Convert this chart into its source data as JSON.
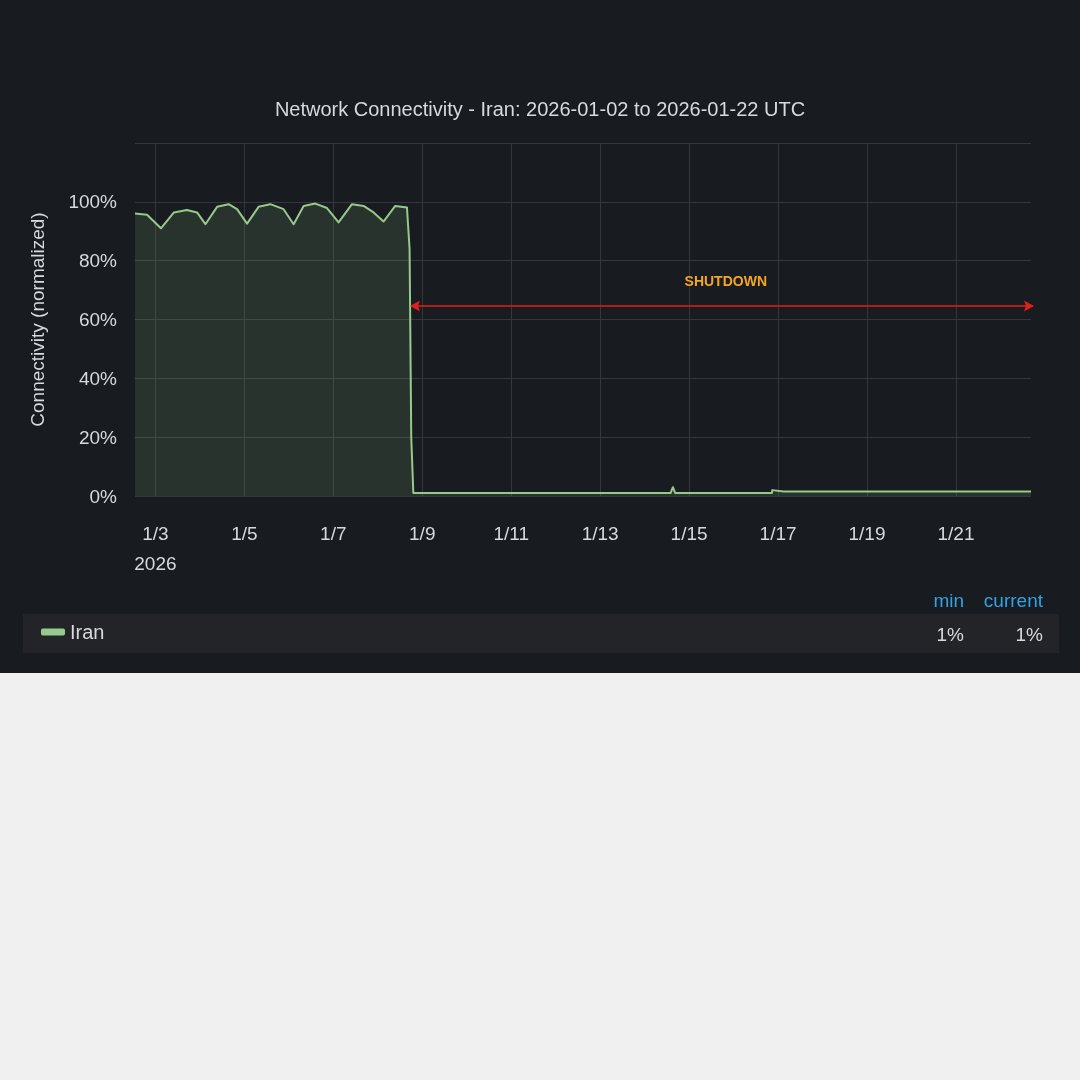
{
  "chart_data": {
    "type": "area",
    "title": "Network Connectivity - Iran: 2026-01-02 to 2026-01-22 UTC",
    "ylabel": "Connectivity (normalized)",
    "series": [
      {
        "name": "Iran",
        "color": "#96c98a",
        "x": [
          "2026-01-02T13:00",
          "2026-01-02T19:30",
          "2026-01-03T03:00",
          "2026-01-03T10:00",
          "2026-01-03T17:00",
          "2026-01-03T22:30",
          "2026-01-04T03:00",
          "2026-01-04T09:18",
          "2026-01-04T15:32",
          "2026-01-04T20:04",
          "2026-01-05T01:28",
          "2026-01-05T07:42",
          "2026-01-05T14:00",
          "2026-01-05T21:12",
          "2026-01-06T02:36",
          "2026-01-06T08:00",
          "2026-01-06T14:18",
          "2026-01-06T20:36",
          "2026-01-07T02:51",
          "2026-01-07T10:05",
          "2026-01-07T16:21",
          "2026-01-07T21:44",
          "2026-01-08T03:07",
          "2026-01-08T09:26",
          "2026-01-08T15:45",
          "2026-01-08T17:10",
          "2026-01-08T18:04",
          "2026-01-08T19:12",
          "2026-01-14T14:00",
          "2026-01-14T15:16",
          "2026-01-14T16:30",
          "2026-01-16T20:40",
          "2026-01-16T20:53",
          "2026-01-17T03:00",
          "2026-01-19T03:40",
          "2026-01-19T16:30",
          "2026-01-21T12:00",
          "2026-01-22T16:30"
        ],
        "values": [
          96,
          95.6,
          91,
          96.4,
          97.2,
          96.4,
          92.4,
          98.3,
          99.2,
          97.5,
          92.6,
          98.3,
          99.2,
          97.5,
          92.4,
          98.6,
          99.4,
          97.9,
          93,
          99.2,
          98.6,
          96.4,
          93.3,
          98.6,
          98.1,
          84,
          20,
          1,
          1,
          3,
          1,
          1,
          2,
          1.5,
          1.5,
          1.5,
          1.5,
          1.5
        ]
      }
    ],
    "xlim": [
      "2026-01-02T13:00",
      "2026-01-22T16:30"
    ],
    "xticks": [
      {
        "value": "2026-01-03",
        "label": "1/3\n2026"
      },
      {
        "value": "2026-01-05",
        "label": "1/5"
      },
      {
        "value": "2026-01-07",
        "label": "1/7"
      },
      {
        "value": "2026-01-09",
        "label": "1/9"
      },
      {
        "value": "2026-01-11",
        "label": "1/11"
      },
      {
        "value": "2026-01-13",
        "label": "1/13"
      },
      {
        "value": "2026-01-15",
        "label": "1/15"
      },
      {
        "value": "2026-01-17",
        "label": "1/17"
      },
      {
        "value": "2026-01-19",
        "label": "1/19"
      },
      {
        "value": "2026-01-21",
        "label": "1/21"
      }
    ],
    "ylim": [
      0,
      120
    ],
    "yticks": [
      {
        "value": 0,
        "label": "0%"
      },
      {
        "value": 20,
        "label": "20%"
      },
      {
        "value": 40,
        "label": "40%"
      },
      {
        "value": 60,
        "label": "60%"
      },
      {
        "value": 80,
        "label": "80%"
      },
      {
        "value": 100,
        "label": "100%"
      },
      {
        "value": 120,
        "label": null
      }
    ],
    "annotations": [
      "SHUTDOWN",
      "min",
      "current",
      "1%",
      "1%"
    ],
    "grid": true,
    "legend": "bottom"
  }
}
